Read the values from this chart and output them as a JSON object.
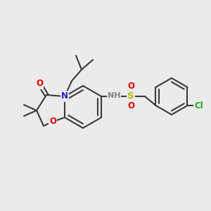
{
  "background_color": "#ebebeb",
  "bond_color": "#3a3a3a",
  "bond_lw": 1.5,
  "atom_colors": {
    "N": "#2222cc",
    "O": "#dd0000",
    "S": "#bbbb00",
    "Cl": "#22aa22",
    "H_label": "#778888"
  },
  "font_size": 8.5
}
